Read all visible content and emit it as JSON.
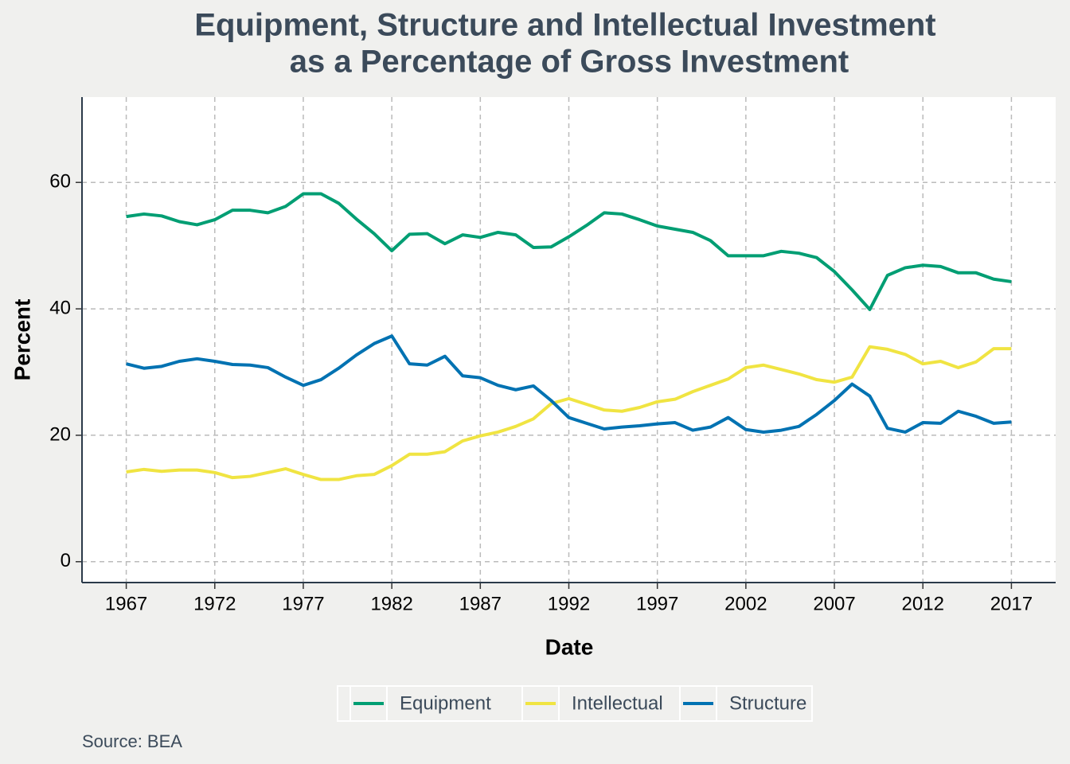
{
  "chart_data": {
    "type": "line",
    "title": [
      "Equipment, Structure and Intellectual Investment",
      "as a Percentage of Gross Investment"
    ],
    "x_label": "Date",
    "y_label": "Percent",
    "source": "Source: BEA",
    "x": [
      1967,
      1968,
      1969,
      1970,
      1971,
      1972,
      1973,
      1974,
      1975,
      1976,
      1977,
      1978,
      1979,
      1980,
      1981,
      1982,
      1983,
      1984,
      1985,
      1986,
      1987,
      1988,
      1989,
      1990,
      1991,
      1992,
      1993,
      1994,
      1995,
      1996,
      1997,
      1998,
      1999,
      2000,
      2001,
      2002,
      2003,
      2004,
      2005,
      2006,
      2007,
      2008,
      2009,
      2010,
      2011,
      2012,
      2013,
      2014,
      2015,
      2016,
      2017
    ],
    "series": [
      {
        "name": "Equipment",
        "color": "#009e73",
        "values": [
          54.6,
          55.0,
          54.7,
          53.8,
          53.3,
          54.1,
          55.6,
          55.6,
          55.2,
          56.2,
          58.2,
          58.2,
          56.7,
          54.2,
          51.9,
          49.2,
          51.8,
          51.9,
          50.3,
          51.7,
          51.3,
          52.1,
          51.7,
          49.7,
          49.8,
          51.4,
          53.2,
          55.2,
          55.0,
          54.1,
          53.1,
          52.6,
          52.1,
          50.8,
          48.4,
          48.4,
          48.4,
          49.1,
          48.8,
          48.1,
          45.9,
          43.0,
          39.9,
          45.3,
          46.5,
          46.9,
          46.7,
          45.7,
          45.7,
          44.7,
          44.3
        ]
      },
      {
        "name": "Intellectual",
        "color": "#f0e442",
        "values": [
          14.2,
          14.6,
          14.3,
          14.5,
          14.5,
          14.1,
          13.3,
          13.5,
          14.1,
          14.7,
          13.8,
          13.0,
          13.0,
          13.6,
          13.8,
          15.2,
          17.0,
          17.0,
          17.4,
          19.1,
          19.9,
          20.5,
          21.4,
          22.6,
          25.0,
          25.8,
          24.9,
          24.0,
          23.8,
          24.4,
          25.3,
          25.7,
          26.9,
          27.9,
          28.9,
          30.7,
          31.1,
          30.4,
          29.7,
          28.8,
          28.4,
          29.2,
          34.0,
          33.6,
          32.8,
          31.3,
          31.7,
          30.7,
          31.6,
          33.7,
          33.7
        ]
      },
      {
        "name": "Structure",
        "color": "#0072b2",
        "values": [
          31.3,
          30.6,
          30.9,
          31.7,
          32.1,
          31.7,
          31.2,
          31.1,
          30.7,
          29.2,
          27.9,
          28.8,
          30.6,
          32.7,
          34.5,
          35.7,
          31.3,
          31.1,
          32.5,
          29.4,
          29.1,
          27.9,
          27.2,
          27.8,
          25.5,
          22.8,
          21.9,
          21.0,
          21.3,
          21.5,
          21.8,
          22.0,
          20.8,
          21.3,
          22.8,
          20.9,
          20.5,
          20.8,
          21.4,
          23.3,
          25.5,
          28.1,
          26.2,
          21.1,
          20.5,
          22.0,
          21.9,
          23.8,
          23.0,
          21.9,
          22.1
        ]
      }
    ],
    "xlim": [
      1964.5,
      2019.5
    ],
    "xticks": [
      1967,
      1972,
      1977,
      1982,
      1987,
      1992,
      1997,
      2002,
      2007,
      2012,
      2017
    ],
    "ylim": [
      -3.3,
      73.5
    ],
    "yticks": [
      0,
      20,
      40,
      60
    ],
    "grid": true,
    "legend": "bottom"
  }
}
